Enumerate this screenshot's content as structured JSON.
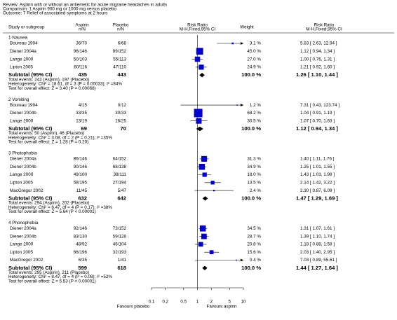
{
  "header": {
    "review": "Review: Aspirin with or without an antiemetic for acute migraine headaches in adults",
    "comparison": "Comparison: 1 Aspirin 900 mg or 1000 mg versus placebo",
    "outcome": "Outcome: 7 Relief of associated symptoms at 2 hours"
  },
  "columns": {
    "study": "Study or subgroup",
    "aspirin": [
      "Aspirin",
      "n/N"
    ],
    "placebo": [
      "Placebo",
      "n/N"
    ],
    "plot": [
      "Risk Ratio",
      "M-H,Fixed,95% CI"
    ],
    "weight": "Weight",
    "effect": [
      "Risk Ratio",
      "M-H,Fixed,95% CI"
    ]
  },
  "chart_data": {
    "type": "forest",
    "xlim": [
      0.1,
      10
    ],
    "xticks": [
      0.1,
      0.2,
      0.5,
      1,
      2,
      5,
      10
    ],
    "log_scale": true,
    "xlabel_left": "Favours placebo",
    "xlabel_right": "Favours aspirin",
    "square_color": "#0000cc",
    "diamond_color": "#000000",
    "groups": [
      {
        "title": "1 Nausea",
        "studies": [
          {
            "name": "Boureau 1994",
            "aspirin": "36/70",
            "placebo": "6/68",
            "weight": 3.1,
            "weight_label": "3.1 %",
            "rr": 5.83,
            "ci": [
              2.63,
              12.94
            ],
            "ci_label": "5.83 [ 2.63, 12.94 ]"
          },
          {
            "name": "Diener 2004a",
            "aspirin": "96/146",
            "placebo": "89/152",
            "weight": 45.0,
            "weight_label": "45.0 %",
            "rr": 1.12,
            "ci": [
              0.94,
              1.34
            ],
            "ci_label": "1.12 [ 0.94, 1.34 ]"
          },
          {
            "name": "Lange 2000",
            "aspirin": "50/103",
            "placebo": "55/113",
            "weight": 27.0,
            "weight_label": "27.0 %",
            "rr": 1.0,
            "ci": [
              0.76,
              1.31
            ],
            "ci_label": "1.00 [ 0.76, 1.31 ]"
          },
          {
            "name": "Lipton 2005",
            "aspirin": "60/116",
            "placebo": "47/110",
            "weight": 24.9,
            "weight_label": "24.9 %",
            "rr": 1.21,
            "ci": [
              0.92,
              1.6
            ],
            "ci_label": "1.21 [ 0.92, 1.60 ]"
          }
        ],
        "subtotal": {
          "label": "Subtotal (95% CI)",
          "aspirin": 435,
          "placebo": 443,
          "weight": 100.0,
          "weight_label": "100.0 %",
          "rr": 1.26,
          "ci": [
            1.1,
            1.44
          ],
          "ci_label": "1.26 [ 1.10, 1.44 ]"
        },
        "total_events": "Total events: 242 (Aspirin), 197 (Placebo)",
        "heterogeneity": "Heterogeneity: Chi² = 18.61, df = 3 (P = 0.00033); I² =84%",
        "overall_effect": "Test for overall effect: Z = 3.40 (P = 0.00068)"
      },
      {
        "title": "2 Vomiting",
        "studies": [
          {
            "name": "Boureau 1994",
            "aspirin": "4/15",
            "placebo": "0/12",
            "weight": 1.2,
            "weight_label": "1.2 %",
            "rr": 7.31,
            "ci": [
              0.43,
              123.74
            ],
            "ci_label": "7.31 [ 0.43, 123.74 ]"
          },
          {
            "name": "Diener 2004b",
            "aspirin": "33/35",
            "placebo": "30/33",
            "weight": 68.2,
            "weight_label": "68.2 %",
            "rr": 1.04,
            "ci": [
              0.91,
              1.19
            ],
            "ci_label": "1.04 [ 0.91, 1.19 ]"
          },
          {
            "name": "Lange 2000",
            "aspirin": "13/19",
            "placebo": "16/25",
            "weight": 30.5,
            "weight_label": "30.5 %",
            "rr": 1.07,
            "ci": [
              0.7,
              1.63
            ],
            "ci_label": "1.07 [ 0.70, 1.63 ]"
          }
        ],
        "subtotal": {
          "label": "Subtotal (95% CI)",
          "aspirin": 69,
          "placebo": 70,
          "weight": 100.0,
          "weight_label": "100.0 %",
          "rr": 1.12,
          "ci": [
            0.94,
            1.34
          ],
          "ci_label": "1.12 [ 0.94, 1.34 ]"
        },
        "total_events": "Total events: 50 (Aspirin), 46 (Placebo)",
        "heterogeneity": "Heterogeneity: Chi² = 3.08, df = 2 (P = 0.21); I² =35%",
        "overall_effect": "Test for overall effect: Z = 1.28 (P = 0.20)"
      },
      {
        "title": "3 Photophobia",
        "studies": [
          {
            "name": "Diener 2004a",
            "aspirin": "86/146",
            "placebo": "64/152",
            "weight": 31.3,
            "weight_label": "31.3 %",
            "rr": 1.4,
            "ci": [
              1.11,
              1.76
            ],
            "ci_label": "1.40 [ 1.11, 1.76 ]"
          },
          {
            "name": "Diener 2004b",
            "aspirin": "90/146",
            "placebo": "68/138",
            "weight": 34.9,
            "weight_label": "34.9 %",
            "rr": 1.25,
            "ci": [
              1.01,
              1.55
            ],
            "ci_label": "1.25 [ 1.01, 1.55 ]"
          },
          {
            "name": "Lange 2000",
            "aspirin": "49/100",
            "placebo": "38/111",
            "weight": 18.0,
            "weight_label": "18.0 %",
            "rr": 1.43,
            "ci": [
              1.03,
              1.98
            ],
            "ci_label": "1.43 [ 1.03, 1.98 ]"
          },
          {
            "name": "Lipton 2005",
            "aspirin": "58/195",
            "placebo": "27/194",
            "weight": 13.5,
            "weight_label": "13.5 %",
            "rr": 2.14,
            "ci": [
              1.42,
              3.22
            ],
            "ci_label": "2.14 [ 1.42, 3.22 ]"
          },
          {
            "name": "MacGregor 2002",
            "aspirin": "11/45",
            "placebo": "5/47",
            "weight": 2.4,
            "weight_label": "2.4 %",
            "rr": 2.3,
            "ci": [
              0.87,
              6.09
            ],
            "ci_label": "2.30 [ 0.87, 6.09 ]"
          }
        ],
        "subtotal": {
          "label": "Subtotal (95% CI)",
          "aspirin": 632,
          "placebo": 642,
          "weight": 100.0,
          "weight_label": "100.0 %",
          "rr": 1.47,
          "ci": [
            1.29,
            1.69
          ],
          "ci_label": "1.47 [ 1.29, 1.69 ]"
        },
        "total_events": "Total events: 294 (Aspirin), 202 (Placebo)",
        "heterogeneity": "Heterogeneity: Chi² = 6.47, df = 4 (P = 0.17); I² =38%",
        "overall_effect": "Test for overall effect: Z = 5.64 (P < 0.00001)"
      },
      {
        "title": "4 Phonophobia",
        "studies": [
          {
            "name": "Diener 2004a",
            "aspirin": "92/146",
            "placebo": "73/152",
            "weight": 34.5,
            "weight_label": "34.5 %",
            "rr": 1.31,
            "ci": [
              1.07,
              1.61
            ],
            "ci_label": "1.31 [ 1.07, 1.61 ]"
          },
          {
            "name": "Diener 2004b",
            "aspirin": "83/130",
            "placebo": "59/128",
            "weight": 28.7,
            "weight_label": "28.7 %",
            "rr": 1.39,
            "ci": [
              1.1,
              1.74
            ],
            "ci_label": "1.39 [ 1.10, 1.74 ]"
          },
          {
            "name": "Lange 2000",
            "aspirin": "48/92",
            "placebo": "46/104",
            "weight": 20.8,
            "weight_label": "20.8 %",
            "rr": 1.18,
            "ci": [
              0.88,
              1.58
            ],
            "ci_label": "1.18 [ 0.88, 1.58 ]"
          },
          {
            "name": "Lipton 2005",
            "aspirin": "66/196",
            "placebo": "32/193",
            "weight": 15.6,
            "weight_label": "15.6 %",
            "rr": 2.03,
            "ci": [
              1.4,
              2.95
            ],
            "ci_label": "2.03 [ 1.40, 2.95 ]"
          },
          {
            "name": "MacGregor 2002",
            "aspirin": "6/35",
            "placebo": "1/41",
            "weight": 0.4,
            "weight_label": "0.4 %",
            "rr": 7.03,
            "ci": [
              0.89,
              55.61
            ],
            "ci_label": "7.03 [ 0.89, 55.61 ]"
          }
        ],
        "subtotal": {
          "label": "Subtotal (95% CI)",
          "aspirin": 599,
          "placebo": 618,
          "weight": 100.0,
          "weight_label": "100.0 %",
          "rr": 1.44,
          "ci": [
            1.27,
            1.64
          ],
          "ci_label": "1.44 [ 1.27, 1.64 ]"
        },
        "total_events": "Total events: 295 (Aspirin), 211 (Placebo)",
        "heterogeneity": "Heterogeneity: Chi² = 8.47, df = 4 (P = 0.08); I² =52%",
        "overall_effect": "Test for overall effect: Z = 5.53 (P < 0.00001)"
      }
    ]
  }
}
